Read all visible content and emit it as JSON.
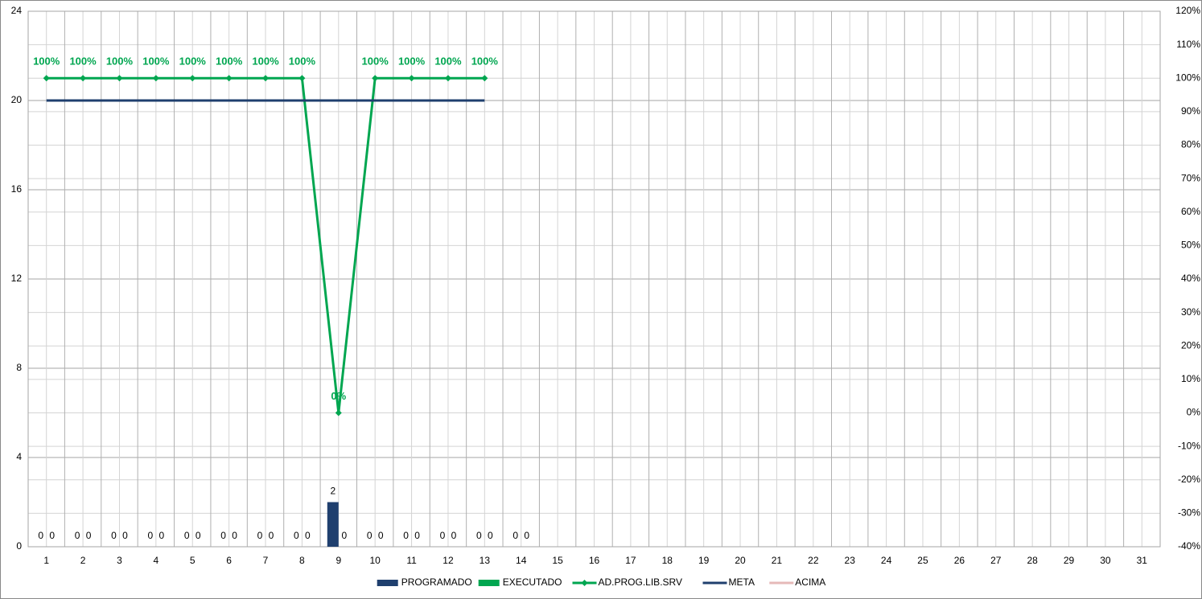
{
  "chart_data": {
    "type": "bar",
    "categories": [
      "1",
      "2",
      "3",
      "4",
      "5",
      "6",
      "7",
      "8",
      "9",
      "10",
      "11",
      "12",
      "13",
      "14",
      "15",
      "16",
      "17",
      "18",
      "19",
      "20",
      "21",
      "22",
      "23",
      "24",
      "25",
      "26",
      "27",
      "28",
      "29",
      "30",
      "31"
    ],
    "ylim": [
      0,
      24
    ],
    "yticks": [
      0,
      4,
      8,
      12,
      16,
      20,
      24
    ],
    "y2lim": [
      -40,
      120
    ],
    "y2ticks": [
      {
        "value": -40,
        "label": "-40%"
      },
      {
        "value": -30,
        "label": "-30%"
      },
      {
        "value": -20,
        "label": "-20%"
      },
      {
        "value": -10,
        "label": "-10%"
      },
      {
        "value": 0,
        "label": "0%"
      },
      {
        "value": 10,
        "label": "10%"
      },
      {
        "value": 20,
        "label": "20%"
      },
      {
        "value": 30,
        "label": "30%"
      },
      {
        "value": 40,
        "label": "40%"
      },
      {
        "value": 50,
        "label": "50%"
      },
      {
        "value": 60,
        "label": "60%"
      },
      {
        "value": 70,
        "label": "70%"
      },
      {
        "value": 80,
        "label": "80%"
      },
      {
        "value": 90,
        "label": "90%"
      },
      {
        "value": 100,
        "label": "100%"
      },
      {
        "value": 110,
        "label": "110%"
      },
      {
        "value": 120,
        "label": "120%"
      }
    ],
    "grid": true,
    "legend": "bottom",
    "series": [
      {
        "name": "PROGRAMADO",
        "type": "bar",
        "color": "#1f3f6e",
        "values": [
          0,
          0,
          0,
          0,
          0,
          0,
          0,
          0,
          2,
          0,
          0,
          0,
          0,
          0,
          null,
          null,
          null,
          null,
          null,
          null,
          null,
          null,
          null,
          null,
          null,
          null,
          null,
          null,
          null,
          null,
          null
        ]
      },
      {
        "name": "EXECUTADO",
        "type": "bar",
        "color": "#00a650",
        "values": [
          0,
          0,
          0,
          0,
          0,
          0,
          0,
          0,
          0,
          0,
          0,
          0,
          0,
          0,
          null,
          null,
          null,
          null,
          null,
          null,
          null,
          null,
          null,
          null,
          null,
          null,
          null,
          null,
          null,
          null,
          null
        ]
      },
      {
        "name": "AD.PROG.LIB.SRV",
        "type": "line",
        "axis": "y2",
        "color": "#00a650",
        "marker": "diamond",
        "values": [
          100,
          100,
          100,
          100,
          100,
          100,
          100,
          100,
          0,
          100,
          100,
          100,
          100,
          null,
          null,
          null,
          null,
          null,
          null,
          null,
          null,
          null,
          null,
          null,
          null,
          null,
          null,
          null,
          null,
          null,
          null
        ],
        "value_labels": [
          "100%",
          "100%",
          "100%",
          "100%",
          "100%",
          "100%",
          "100%",
          "100%",
          "0%",
          "100%",
          "100%",
          "100%",
          "100%",
          null,
          null,
          null,
          null,
          null,
          null,
          null,
          null,
          null,
          null,
          null,
          null,
          null,
          null,
          null,
          null,
          null,
          null
        ]
      },
      {
        "name": "META",
        "type": "line",
        "color": "#1f3f6e",
        "values": [
          20,
          20,
          20,
          20,
          20,
          20,
          20,
          20,
          20,
          20,
          20,
          20,
          20,
          null,
          null,
          null,
          null,
          null,
          null,
          null,
          null,
          null,
          null,
          null,
          null,
          null,
          null,
          null,
          null,
          null,
          null
        ]
      },
      {
        "name": "ACIMA",
        "type": "line",
        "color": "#e6b9b8",
        "values": [
          null,
          null,
          null,
          null,
          null,
          null,
          null,
          null,
          null,
          null,
          null,
          null,
          null,
          null,
          null,
          null,
          null,
          null,
          null,
          null,
          null,
          null,
          null,
          null,
          null,
          null,
          null,
          null,
          null,
          null,
          null
        ]
      }
    ]
  }
}
